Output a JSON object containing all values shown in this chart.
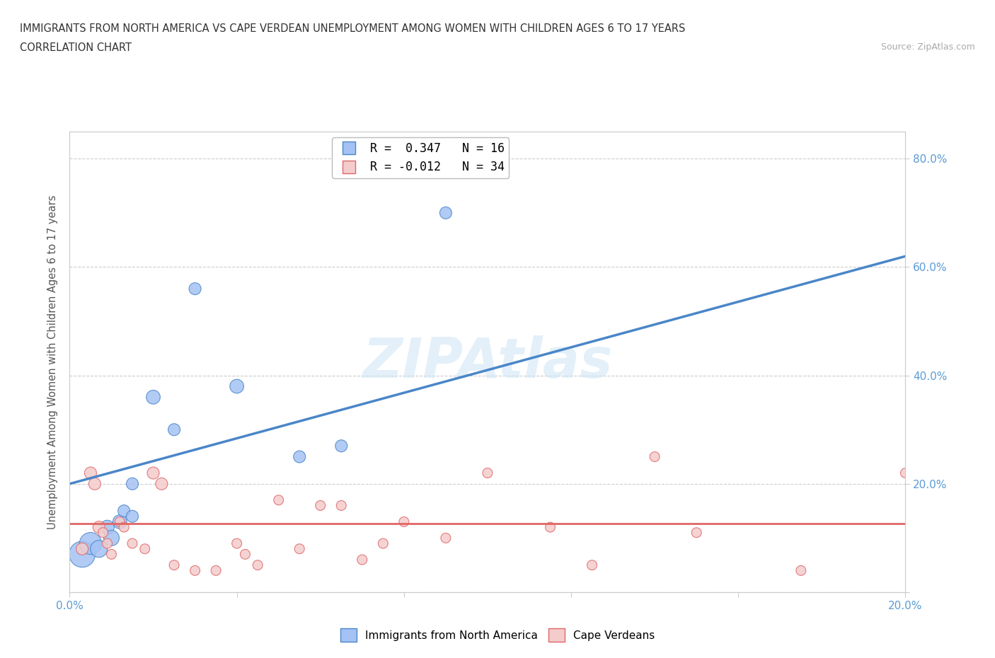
{
  "title_line1": "IMMIGRANTS FROM NORTH AMERICA VS CAPE VERDEAN UNEMPLOYMENT AMONG WOMEN WITH CHILDREN AGES 6 TO 17 YEARS",
  "title_line2": "CORRELATION CHART",
  "source_text": "Source: ZipAtlas.com",
  "ylabel": "Unemployment Among Women with Children Ages 6 to 17 years",
  "xlim": [
    0.0,
    0.2
  ],
  "ylim": [
    0.0,
    0.85
  ],
  "xticks": [
    0.0,
    0.04,
    0.08,
    0.12,
    0.16,
    0.2
  ],
  "yticks": [
    0.0,
    0.2,
    0.4,
    0.6,
    0.8
  ],
  "ytick_labels": [
    "",
    "20.0%",
    "40.0%",
    "60.0%",
    "80.0%"
  ],
  "xtick_labels": [
    "0.0%",
    "",
    "",
    "",
    "",
    "20.0%"
  ],
  "legend_label1": "Immigrants from North America",
  "legend_label2": "Cape Verdeans",
  "color_blue": "#a4c2f4",
  "color_pink": "#f4cccc",
  "edge_blue": "#4a86c8",
  "edge_pink": "#e06666",
  "watermark": "ZIPAtlas",
  "blue_scatter_x": [
    0.003,
    0.005,
    0.007,
    0.009,
    0.01,
    0.012,
    0.013,
    0.015,
    0.015,
    0.02,
    0.025,
    0.03,
    0.04,
    0.055,
    0.065,
    0.09
  ],
  "blue_scatter_y": [
    0.07,
    0.09,
    0.08,
    0.12,
    0.1,
    0.13,
    0.15,
    0.2,
    0.14,
    0.36,
    0.3,
    0.56,
    0.38,
    0.25,
    0.27,
    0.7
  ],
  "blue_scatter_sizes": [
    700,
    500,
    300,
    200,
    250,
    200,
    150,
    150,
    150,
    200,
    150,
    150,
    200,
    150,
    150,
    150
  ],
  "pink_scatter_x": [
    0.003,
    0.005,
    0.006,
    0.007,
    0.008,
    0.009,
    0.01,
    0.012,
    0.013,
    0.015,
    0.018,
    0.02,
    0.022,
    0.025,
    0.03,
    0.035,
    0.04,
    0.042,
    0.045,
    0.05,
    0.055,
    0.06,
    0.065,
    0.07,
    0.075,
    0.08,
    0.09,
    0.1,
    0.115,
    0.125,
    0.14,
    0.15,
    0.175,
    0.2
  ],
  "pink_scatter_y": [
    0.08,
    0.22,
    0.2,
    0.12,
    0.11,
    0.09,
    0.07,
    0.13,
    0.12,
    0.09,
    0.08,
    0.22,
    0.2,
    0.05,
    0.04,
    0.04,
    0.09,
    0.07,
    0.05,
    0.17,
    0.08,
    0.16,
    0.16,
    0.06,
    0.09,
    0.13,
    0.1,
    0.22,
    0.12,
    0.05,
    0.25,
    0.11,
    0.04,
    0.22
  ],
  "pink_scatter_sizes": [
    150,
    150,
    150,
    150,
    100,
    100,
    100,
    100,
    100,
    100,
    100,
    150,
    150,
    100,
    100,
    100,
    100,
    100,
    100,
    100,
    100,
    100,
    100,
    100,
    100,
    100,
    100,
    100,
    100,
    100,
    100,
    100,
    100,
    100
  ],
  "blue_line_x": [
    0.0,
    0.2
  ],
  "blue_line_y": [
    0.2,
    0.62
  ],
  "pink_line_x": [
    0.0,
    0.2
  ],
  "pink_line_y": [
    0.127,
    0.127
  ],
  "grid_color": "#cccccc",
  "bg_color": "#ffffff",
  "tick_color": "#5b9bd5",
  "axis_color": "#cccccc"
}
